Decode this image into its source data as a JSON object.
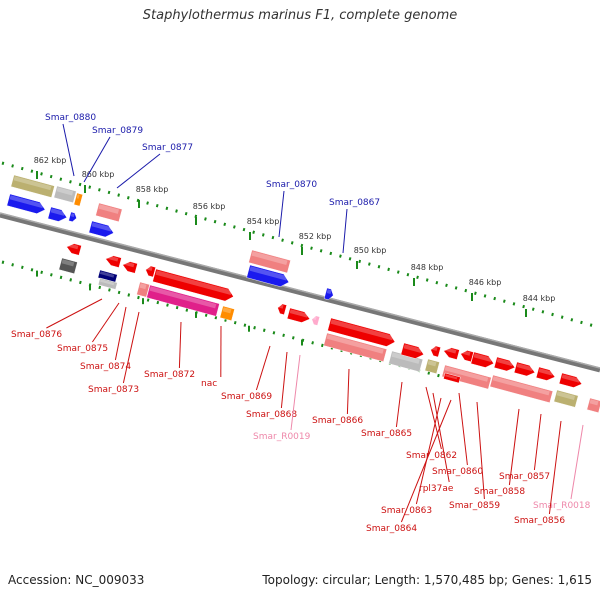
{
  "title": "Staphylothermus marinus F1, complete genome",
  "footer": {
    "accession": "Accession: NC_009033",
    "summary": "Topology: circular; Length: 1,570,485 bp; Genes: 1,615"
  },
  "ruler_labels": [
    "862 kbp",
    "860 kbp",
    "858 kbp",
    "856 kbp",
    "854 kbp",
    "852 kbp",
    "850 kbp",
    "848 kbp",
    "846 kbp",
    "844 kbp"
  ],
  "top_labels": [
    "Smar_0880",
    "Smar_0879",
    "Smar_0877",
    "Smar_0870",
    "Smar_0867"
  ],
  "bottom_labels": [
    "Smar_0876",
    "Smar_0875",
    "Smar_0874",
    "Smar_0873",
    "Smar_0872",
    "nac",
    "Smar_0869",
    "Smar_0868",
    "Smar_R0019",
    "Smar_0866",
    "Smar_0865",
    "Smar_0862",
    "rpl37ae",
    "Smar_0860",
    "Smar_0863",
    "Smar_0864",
    "Smar_0859",
    "Smar_0858",
    "Smar_0857",
    "Smar_R0018",
    "Smar_0856"
  ],
  "colors": {
    "top_label": "#1a1aaa",
    "bottom_label": "#cc1111",
    "rna_label": "#ee88aa",
    "backbone": "#888888",
    "ruler_tick": "#1a8a1a",
    "gene_red": "#ee0000",
    "gene_salmon": "#f08080",
    "gene_blue": "#1a1aee",
    "gene_magenta": "#e0208a",
    "gene_olive": "#bbb070",
    "gene_gray": "#bbbbbb",
    "gene_dark": "#555555",
    "gene_orange": "#ff8c00",
    "gene_navy": "#000077",
    "gene_pink": "#ffaacc"
  }
}
